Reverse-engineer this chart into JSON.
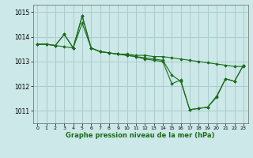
{
  "background_color": "#cce8e8",
  "grid_color": "#aacccc",
  "line_color": "#1a6b1a",
  "marker_color": "#1a6b1a",
  "xlabel": "Graphe pression niveau de la mer (hPa)",
  "xlim": [
    -0.5,
    23.5
  ],
  "ylim": [
    1010.5,
    1015.3
  ],
  "yticks": [
    1011,
    1012,
    1013,
    1014,
    1015
  ],
  "xticks": [
    0,
    1,
    2,
    3,
    4,
    5,
    6,
    7,
    8,
    9,
    10,
    11,
    12,
    13,
    14,
    15,
    16,
    17,
    18,
    19,
    20,
    21,
    22,
    23
  ],
  "series": [
    [
      1013.7,
      1013.7,
      1013.65,
      1013.6,
      1013.55,
      1014.55,
      1013.55,
      1013.4,
      1013.35,
      1013.3,
      1013.3,
      1013.25,
      1013.25,
      1013.2,
      1013.2,
      1013.15,
      1013.1,
      1013.05,
      1013.0,
      1012.95,
      1012.9,
      1012.85,
      1012.8,
      1012.8
    ],
    [
      1013.7,
      1013.7,
      1013.65,
      1014.1,
      1013.55,
      1014.85,
      1013.55,
      1013.4,
      1013.35,
      1013.3,
      1013.25,
      1013.2,
      1013.15,
      1013.1,
      1013.05,
      1012.45,
      1012.2,
      1011.05,
      1011.1,
      1011.15,
      1011.6,
      1012.3,
      1012.2,
      1012.85
    ],
    [
      1013.7,
      1013.7,
      1013.65,
      1014.1,
      1013.55,
      1014.85,
      1013.55,
      1013.4,
      1013.35,
      1013.3,
      1013.25,
      1013.2,
      1013.1,
      1013.05,
      1013.0,
      1012.1,
      1012.25,
      1011.05,
      1011.1,
      1011.15,
      1011.55,
      1012.3,
      1012.2,
      1012.85
    ]
  ]
}
